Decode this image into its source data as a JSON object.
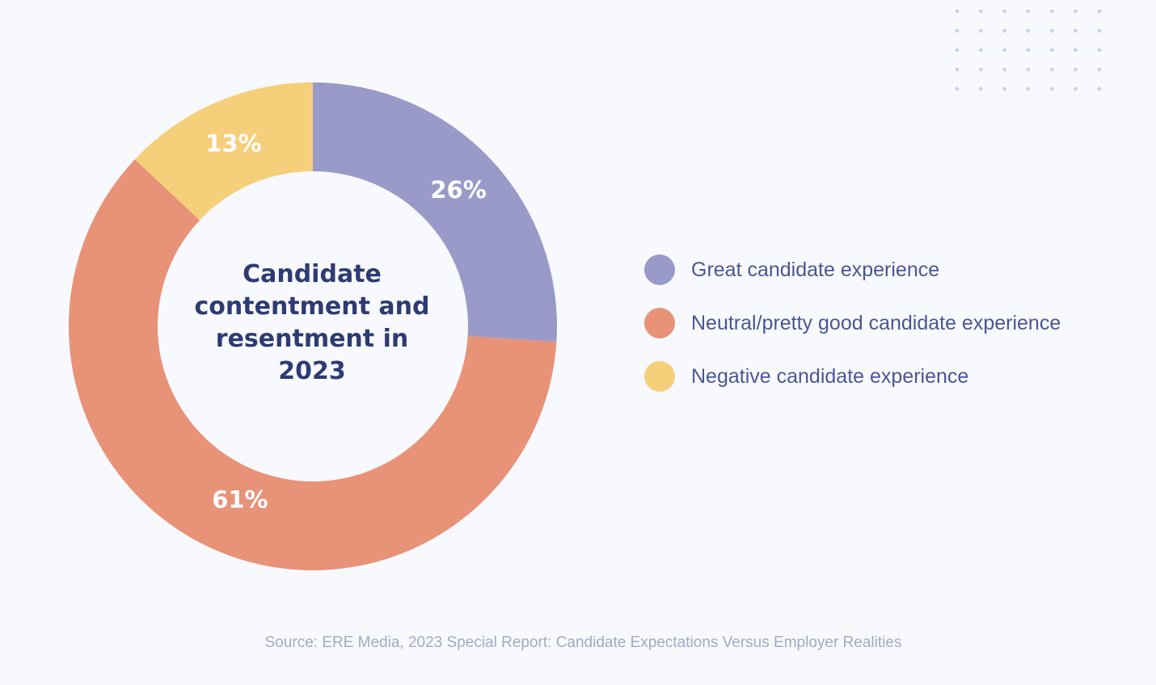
{
  "chart_data": {
    "type": "pie",
    "title": "Candidate contentment and resentment in 2023",
    "title_lines": [
      "Candidate",
      "contentment and",
      "resentment in",
      "2023"
    ],
    "series": [
      {
        "name": "Great candidate experience",
        "value": 26,
        "label": "26%",
        "color": "#9a9ac8"
      },
      {
        "name": "Neutral/pretty good candidate experience",
        "value": 61,
        "label": "61%",
        "color": "#e89277"
      },
      {
        "name": "Negative candidate experience",
        "value": 13,
        "label": "13%",
        "color": "#f6cf7b"
      }
    ],
    "donut": true,
    "legend_position": "right"
  },
  "source": "Source: ERE Media, 2023 Special Report: Candidate Expectations Versus Employer Realities",
  "colors": {
    "background": "#f8f9fd",
    "title": "#2e3b72",
    "legend_text": "#4b5694",
    "source_text": "#a3a9c6",
    "dot_pattern": "#c9d2ee"
  }
}
